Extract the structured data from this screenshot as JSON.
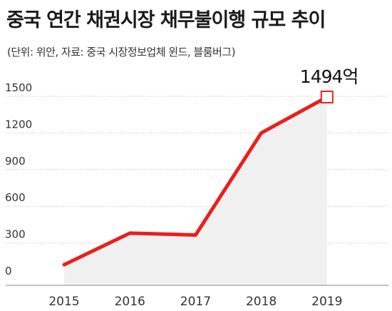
{
  "title": "중국 연간 채권시장 채무불이행 규모 추이",
  "subtitle": "(단위: 위안, 자료: 중국 시장정보업체 윈드, 블룸버그)",
  "colors": {
    "line": "#e8201c",
    "area": "#f0f0f0",
    "grid": "#cfcfcf",
    "axis": "#888888"
  },
  "chart_data": {
    "type": "line",
    "title": "중국 연간 채권시장 채무불이행 규모 추이",
    "x": [
      "2015",
      "2016",
      "2017",
      "2018",
      "2019"
    ],
    "series": [
      {
        "values": [
          122,
          380,
          365,
          1200,
          1494
        ]
      }
    ],
    "yticks": [
      0,
      300,
      600,
      900,
      1200,
      1500
    ],
    "ytick_labels": [
      "0",
      "300",
      "600",
      "900",
      "1200",
      "1500"
    ],
    "ylim": [
      0,
      1500
    ],
    "grid": true,
    "area_fill": true,
    "annotation": {
      "label": "1494억",
      "x": "2019",
      "y": 1494,
      "marker": "hollow-square"
    }
  }
}
